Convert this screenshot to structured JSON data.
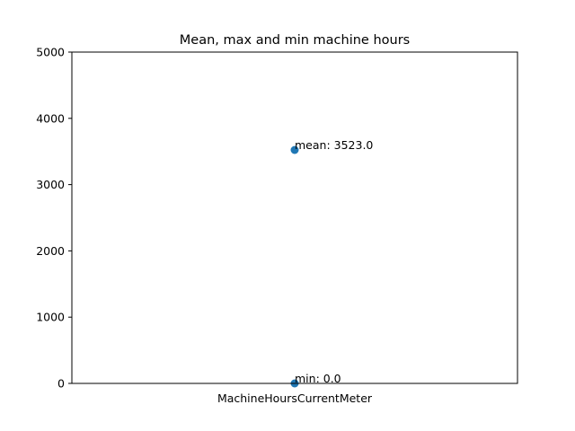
{
  "chart_data": {
    "type": "scatter",
    "title": "Mean, max and min machine hours",
    "xlabel": "",
    "ylabel": "",
    "categories": [
      "MachineHoursCurrentMeter"
    ],
    "ylim": [
      0,
      5000
    ],
    "yticks": [
      0,
      1000,
      2000,
      3000,
      4000,
      5000
    ],
    "grid": false,
    "series": [
      {
        "points": [
          {
            "x": "MachineHoursCurrentMeter",
            "y": 3523.0,
            "label": "mean: 3523.0"
          },
          {
            "x": "MachineHoursCurrentMeter",
            "y": 0.0,
            "label": "min: 0.0"
          }
        ]
      }
    ],
    "colors": {
      "point": "#1f77b4",
      "axis": "#000000"
    }
  }
}
